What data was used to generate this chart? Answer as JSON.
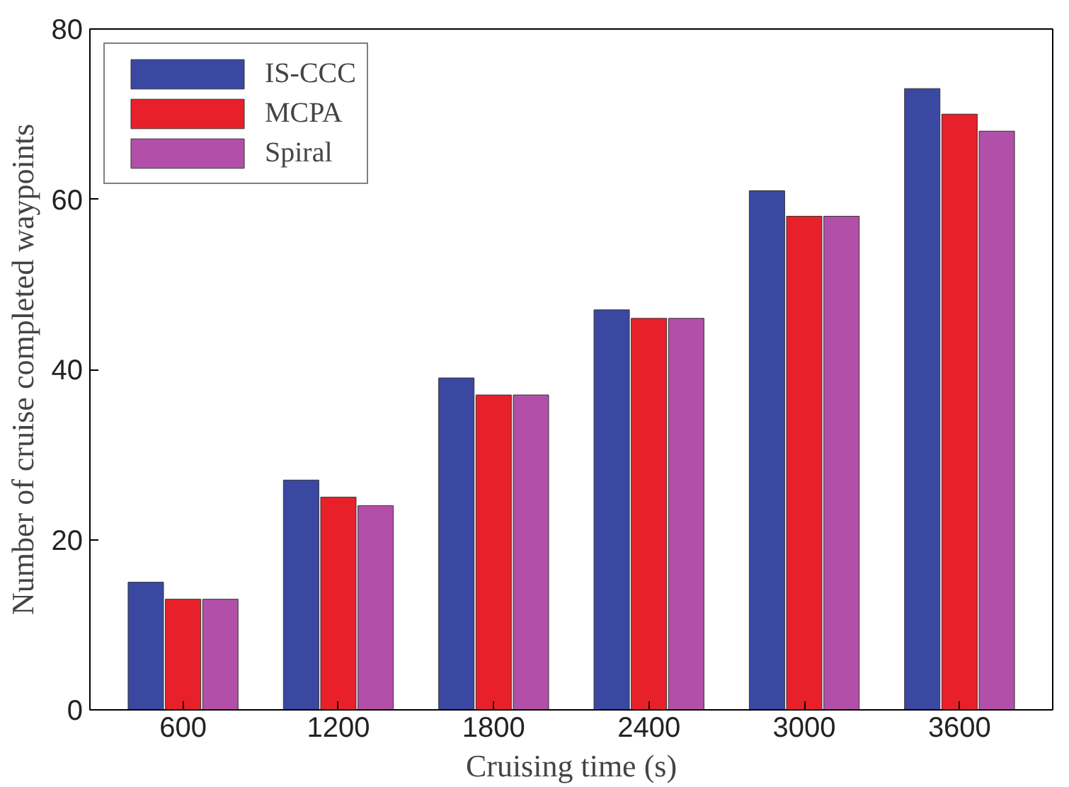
{
  "chart_data": {
    "type": "bar",
    "xlabel": "Cruising time (s)",
    "ylabel": "Number of cruise completed waypoints",
    "categories": [
      "600",
      "1200",
      "1800",
      "2400",
      "3000",
      "3600"
    ],
    "series": [
      {
        "name": "IS-CCC",
        "color": "#3a48a2",
        "values": [
          15,
          27,
          39,
          47,
          61,
          73
        ]
      },
      {
        "name": "MCPA",
        "color": "#e8202a",
        "values": [
          13,
          25,
          37,
          46,
          58,
          70
        ]
      },
      {
        "name": "Spiral",
        "color": "#b24fa8",
        "values": [
          13,
          24,
          37,
          46,
          58,
          68
        ]
      }
    ],
    "ylim": [
      0,
      80
    ],
    "yticks": [
      0,
      20,
      40,
      60,
      80
    ],
    "grid": false,
    "legend": "top left"
  }
}
